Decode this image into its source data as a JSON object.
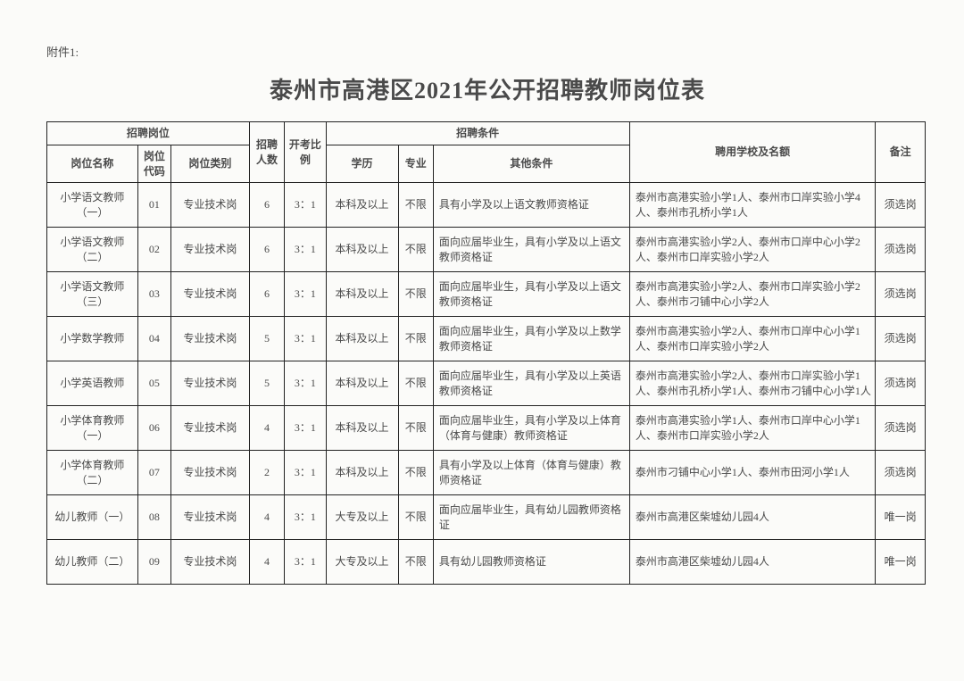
{
  "attachment_label": "附件1:",
  "title": "泰州市高港区2021年公开招聘教师岗位表",
  "header": {
    "positions_group": "招聘岗位",
    "position_name": "岗位名称",
    "position_code": "岗位代码",
    "position_category": "岗位类别",
    "recruit_count": "招聘人数",
    "exam_ratio": "开考比例",
    "conditions_group": "招聘条件",
    "education": "学历",
    "major": "专业",
    "other_conditions": "其他条件",
    "schools_quota": "聘用学校及名额",
    "remark": "备注"
  },
  "rows": [
    {
      "name": "小学语文教师（一）",
      "code": "01",
      "category": "专业技术岗",
      "count": "6",
      "ratio": "3：1",
      "edu": "本科及以上",
      "major": "不限",
      "other": "具有小学及以上语文教师资格证",
      "schools": "泰州市高港实验小学1人、泰州市口岸实验小学4人、泰州市孔桥小学1人",
      "remark": "须选岗"
    },
    {
      "name": "小学语文教师（二）",
      "code": "02",
      "category": "专业技术岗",
      "count": "6",
      "ratio": "3：1",
      "edu": "本科及以上",
      "major": "不限",
      "other": "面向应届毕业生，具有小学及以上语文教师资格证",
      "schools": "泰州市高港实验小学2人、泰州市口岸中心小学2人、泰州市口岸实验小学2人",
      "remark": "须选岗"
    },
    {
      "name": "小学语文教师（三）",
      "code": "03",
      "category": "专业技术岗",
      "count": "6",
      "ratio": "3：1",
      "edu": "本科及以上",
      "major": "不限",
      "other": "面向应届毕业生，具有小学及以上语文教师资格证",
      "schools": "泰州市高港实验小学2人、泰州市口岸实验小学2人、泰州市刁铺中心小学2人",
      "remark": "须选岗"
    },
    {
      "name": "小学数学教师",
      "code": "04",
      "category": "专业技术岗",
      "count": "5",
      "ratio": "3：1",
      "edu": "本科及以上",
      "major": "不限",
      "other": "面向应届毕业生，具有小学及以上数学教师资格证",
      "schools": "泰州市高港实验小学2人、泰州市口岸中心小学1人、泰州市口岸实验小学2人",
      "remark": "须选岗"
    },
    {
      "name": "小学英语教师",
      "code": "05",
      "category": "专业技术岗",
      "count": "5",
      "ratio": "3：1",
      "edu": "本科及以上",
      "major": "不限",
      "other": "面向应届毕业生，具有小学及以上英语教师资格证",
      "schools": "泰州市高港实验小学2人、泰州市口岸实验小学1人、泰州市孔桥小学1人、泰州市刁铺中心小学1人",
      "remark": "须选岗"
    },
    {
      "name": "小学体育教师（一）",
      "code": "06",
      "category": "专业技术岗",
      "count": "4",
      "ratio": "3：1",
      "edu": "本科及以上",
      "major": "不限",
      "other": "面向应届毕业生，具有小学及以上体育（体育与健康）教师资格证",
      "schools": "泰州市高港实验小学1人、泰州市口岸中心小学1人、泰州市口岸实验小学2人",
      "remark": "须选岗"
    },
    {
      "name": "小学体育教师（二）",
      "code": "07",
      "category": "专业技术岗",
      "count": "2",
      "ratio": "3：1",
      "edu": "本科及以上",
      "major": "不限",
      "other": "具有小学及以上体育（体育与健康）教师资格证",
      "schools": "泰州市刁铺中心小学1人、泰州市田河小学1人",
      "remark": "须选岗"
    },
    {
      "name": "幼儿教师（一）",
      "code": "08",
      "category": "专业技术岗",
      "count": "4",
      "ratio": "3：1",
      "edu": "大专及以上",
      "major": "不限",
      "other": "面向应届毕业生，具有幼儿园教师资格证",
      "schools": "泰州市高港区柴墟幼儿园4人",
      "remark": "唯一岗"
    },
    {
      "name": "幼儿教师（二）",
      "code": "09",
      "category": "专业技术岗",
      "count": "4",
      "ratio": "3：1",
      "edu": "大专及以上",
      "major": "不限",
      "other": "具有幼儿园教师资格证",
      "schools": "泰州市高港区柴墟幼儿园4人",
      "remark": "唯一岗"
    }
  ]
}
